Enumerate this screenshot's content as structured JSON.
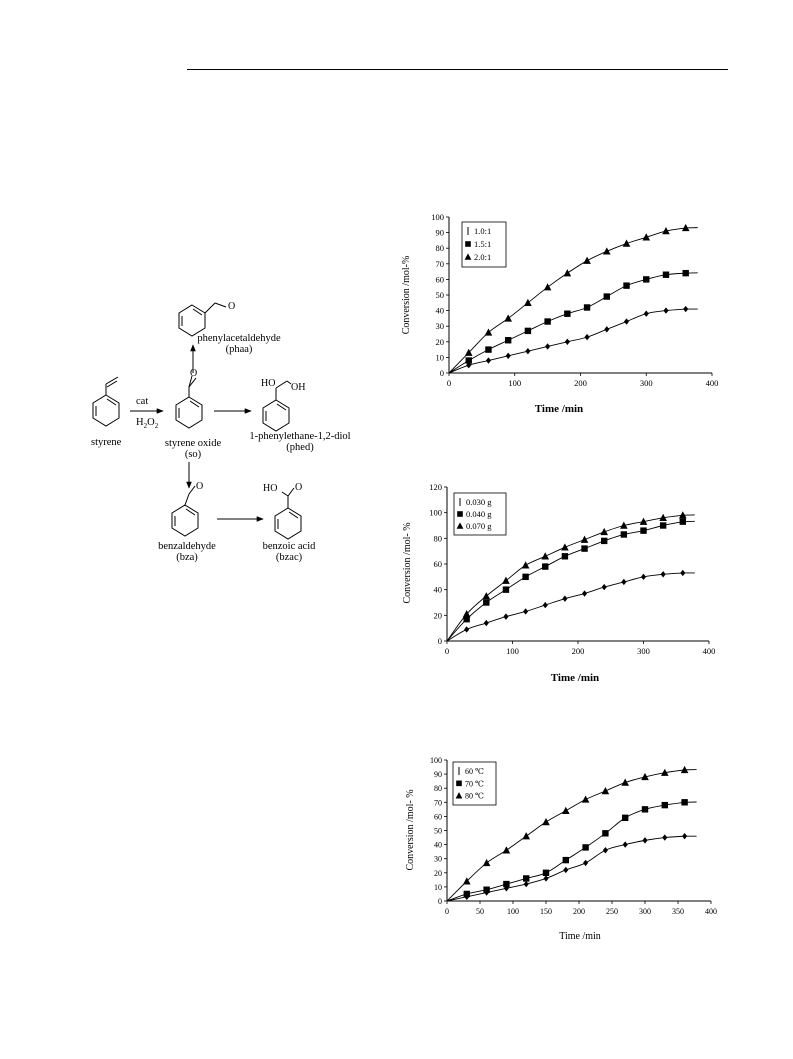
{
  "scheme": {
    "reactant": "styrene",
    "catalyst": "cat",
    "oxidant": {
      "main": "H",
      "sub": "2",
      "main2": "O",
      "sub2": "2"
    },
    "intermediate": {
      "name": "styrene oxide",
      "abbr": "(so)"
    },
    "products": [
      {
        "name": "phenylacetaldehyde",
        "abbr": "(phaa)",
        "groups": [
          "O"
        ]
      },
      {
        "name": "1-phenylethane-1,2-diol",
        "abbr": "(phed)",
        "groups": [
          "HO",
          "OH"
        ]
      },
      {
        "name": "benzaldehyde",
        "abbr": "(bza)",
        "groups": [
          "O"
        ]
      },
      {
        "name": "benzoic acid",
        "abbr": "(bzac)",
        "groups": [
          "HO",
          "O"
        ]
      }
    ]
  },
  "chart_data": [
    {
      "type": "line",
      "xlabel": "Time /min",
      "ylabel": "Conversion /mol-%",
      "xlim": [
        0,
        400
      ],
      "ylim": [
        0,
        100
      ],
      "xticks": [
        0,
        100,
        200,
        300,
        400
      ],
      "yticks": [
        0,
        10,
        20,
        30,
        40,
        50,
        60,
        70,
        80,
        90,
        100
      ],
      "legend_position": "top-left",
      "series": [
        {
          "name": "1.0:1",
          "marker": "diamond",
          "x": [
            0,
            30,
            60,
            90,
            120,
            150,
            180,
            210,
            240,
            270,
            300,
            330,
            360
          ],
          "y": [
            0,
            5,
            8,
            11,
            14,
            17,
            20,
            23,
            28,
            33,
            38,
            40,
            41
          ]
        },
        {
          "name": "1.5:1",
          "marker": "square",
          "x": [
            0,
            30,
            60,
            90,
            120,
            150,
            180,
            210,
            240,
            270,
            300,
            330,
            360
          ],
          "y": [
            0,
            8,
            15,
            21,
            27,
            33,
            38,
            42,
            49,
            56,
            60,
            63,
            64
          ]
        },
        {
          "name": "2.0:1",
          "marker": "triangle",
          "x": [
            0,
            30,
            60,
            90,
            120,
            150,
            180,
            210,
            240,
            270,
            300,
            330,
            360
          ],
          "y": [
            0,
            13,
            26,
            35,
            45,
            55,
            64,
            72,
            78,
            83,
            87,
            91,
            93
          ]
        }
      ]
    },
    {
      "type": "line",
      "xlabel": "Time /min",
      "ylabel": "Conversion /mol- %",
      "xlim": [
        0,
        400
      ],
      "ylim": [
        0,
        120
      ],
      "xticks": [
        0,
        100,
        200,
        300,
        400
      ],
      "yticks": [
        0,
        20,
        40,
        60,
        80,
        100,
        120
      ],
      "legend_position": "top-left",
      "series": [
        {
          "name": "0.030 g",
          "marker": "diamond",
          "x": [
            0,
            30,
            60,
            90,
            120,
            150,
            180,
            210,
            240,
            270,
            300,
            330,
            360
          ],
          "y": [
            0,
            9,
            14,
            19,
            23,
            28,
            33,
            37,
            42,
            46,
            50,
            52,
            53
          ]
        },
        {
          "name": "0.040 g",
          "marker": "square",
          "x": [
            0,
            30,
            60,
            90,
            120,
            150,
            180,
            210,
            240,
            270,
            300,
            330,
            360
          ],
          "y": [
            0,
            17,
            30,
            40,
            50,
            58,
            66,
            72,
            78,
            83,
            86,
            90,
            93
          ]
        },
        {
          "name": "0.070 g",
          "marker": "triangle",
          "x": [
            0,
            30,
            60,
            90,
            120,
            150,
            180,
            210,
            240,
            270,
            300,
            330,
            360
          ],
          "y": [
            0,
            21,
            35,
            47,
            59,
            66,
            73,
            79,
            85,
            90,
            93,
            96,
            98
          ]
        }
      ]
    },
    {
      "type": "line",
      "xlabel": "Time /min",
      "ylabel": "Conversion /mol- %",
      "xlim": [
        0,
        400
      ],
      "ylim": [
        0,
        100
      ],
      "xticks": [
        0,
        50,
        100,
        150,
        200,
        250,
        300,
        350,
        400
      ],
      "yticks": [
        0,
        10,
        20,
        30,
        40,
        50,
        60,
        70,
        80,
        90,
        100
      ],
      "legend_position": "top-left",
      "series": [
        {
          "name": "60 ℃",
          "marker": "diamond",
          "x": [
            0,
            30,
            60,
            90,
            120,
            150,
            180,
            210,
            240,
            270,
            300,
            330,
            360
          ],
          "y": [
            0,
            3,
            6,
            9,
            12,
            16,
            22,
            27,
            36,
            40,
            43,
            45,
            46
          ]
        },
        {
          "name": "70 ℃",
          "marker": "square",
          "x": [
            0,
            30,
            60,
            90,
            120,
            150,
            180,
            210,
            240,
            270,
            300,
            330,
            360
          ],
          "y": [
            0,
            5,
            8,
            12,
            16,
            20,
            29,
            38,
            48,
            59,
            65,
            68,
            70
          ]
        },
        {
          "name": "80 ℃",
          "marker": "triangle",
          "x": [
            0,
            30,
            60,
            90,
            120,
            150,
            180,
            210,
            240,
            270,
            300,
            330,
            360
          ],
          "y": [
            0,
            14,
            27,
            36,
            46,
            56,
            64,
            72,
            78,
            84,
            88,
            91,
            93
          ]
        }
      ]
    }
  ]
}
